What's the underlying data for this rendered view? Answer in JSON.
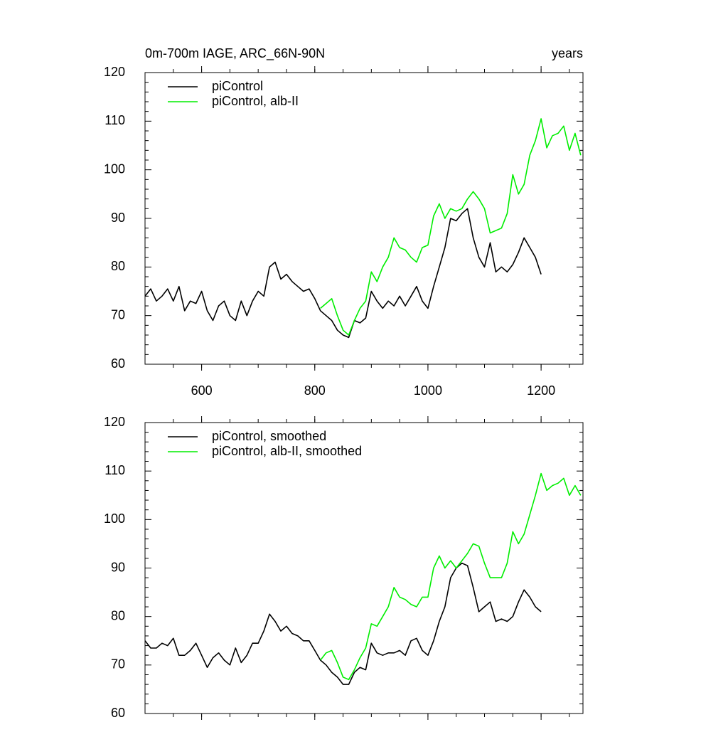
{
  "chart_data": [
    {
      "type": "line",
      "title": "0m-700m IAGE, ARC_66N-90N",
      "subtitle": "years",
      "xlim": [
        500,
        1274
      ],
      "xticks": [
        600,
        800,
        1000,
        1200
      ],
      "ylim": [
        60,
        120
      ],
      "yticks": [
        60,
        70,
        80,
        90,
        100,
        110,
        120
      ],
      "series": [
        {
          "name": "piControl",
          "color": "#000000",
          "x": [
            500,
            510,
            520,
            530,
            540,
            550,
            560,
            570,
            580,
            590,
            600,
            610,
            620,
            630,
            640,
            650,
            660,
            670,
            680,
            690,
            700,
            710,
            720,
            730,
            740,
            750,
            760,
            770,
            780,
            790,
            800,
            810,
            820,
            830,
            840,
            850,
            860,
            870,
            880,
            890,
            900,
            910,
            920,
            930,
            940,
            950,
            960,
            970,
            980,
            990,
            1000,
            1010,
            1020,
            1030,
            1040,
            1050,
            1060,
            1070,
            1080,
            1090,
            1100,
            1110,
            1120,
            1130,
            1140,
            1150,
            1160,
            1170,
            1180,
            1190,
            1200
          ],
          "values": [
            74,
            75.5,
            73,
            74,
            75.5,
            73,
            76,
            71,
            73,
            72.5,
            75,
            71,
            69,
            72,
            73,
            70,
            69,
            73,
            70,
            73,
            75,
            74,
            80,
            81,
            77.5,
            78.5,
            77,
            76,
            75,
            75.5,
            73.5,
            71,
            70,
            69,
            67,
            66,
            65.5,
            69,
            68.5,
            69.5,
            75,
            73,
            71.5,
            73,
            72,
            74,
            72,
            74,
            76,
            73,
            71.5,
            76,
            80,
            84,
            90,
            89.5,
            91,
            92,
            86,
            82,
            80,
            85,
            79,
            80,
            79,
            80.5,
            83,
            86,
            84,
            82,
            78.5
          ]
        },
        {
          "name": "piControl, alb-II",
          "color": "#00ee00",
          "x": [
            810,
            820,
            830,
            840,
            850,
            860,
            870,
            880,
            890,
            900,
            910,
            920,
            930,
            940,
            950,
            960,
            970,
            980,
            990,
            1000,
            1010,
            1020,
            1030,
            1040,
            1050,
            1060,
            1070,
            1080,
            1090,
            1100,
            1110,
            1120,
            1130,
            1140,
            1150,
            1160,
            1170,
            1180,
            1190,
            1200,
            1210,
            1220,
            1230,
            1240,
            1250,
            1260,
            1270
          ],
          "values": [
            71.5,
            72.5,
            73.5,
            70,
            67,
            66,
            69,
            71.5,
            73,
            79,
            77,
            80,
            82,
            86,
            84,
            83.5,
            82,
            81,
            84,
            84.5,
            90.5,
            93,
            90,
            92,
            91.5,
            92,
            94,
            95.5,
            94,
            92,
            87,
            87.5,
            88,
            91,
            99,
            95,
            97,
            103,
            106,
            110.5,
            104.5,
            107,
            107.5,
            109,
            104,
            107.5,
            103
          ]
        }
      ]
    },
    {
      "type": "line",
      "xlim": [
        500,
        1274
      ],
      "xticks": [
        600,
        800,
        1000,
        1200
      ],
      "ylim": [
        60,
        120
      ],
      "yticks": [
        60,
        70,
        80,
        90,
        100,
        110,
        120
      ],
      "series": [
        {
          "name": "piControl, smoothed",
          "color": "#000000",
          "x": [
            500,
            510,
            520,
            530,
            540,
            550,
            560,
            570,
            580,
            590,
            600,
            610,
            620,
            630,
            640,
            650,
            660,
            670,
            680,
            690,
            700,
            710,
            720,
            730,
            740,
            750,
            760,
            770,
            780,
            790,
            800,
            810,
            820,
            830,
            840,
            850,
            860,
            870,
            880,
            890,
            900,
            910,
            920,
            930,
            940,
            950,
            960,
            970,
            980,
            990,
            1000,
            1010,
            1020,
            1030,
            1040,
            1050,
            1060,
            1070,
            1080,
            1090,
            1100,
            1110,
            1120,
            1130,
            1140,
            1150,
            1160,
            1170,
            1180,
            1190,
            1200
          ],
          "values": [
            75,
            73.5,
            73.5,
            74.5,
            74,
            75.5,
            72,
            72,
            73,
            74.5,
            72,
            69.5,
            71.5,
            72.5,
            71,
            70,
            73.5,
            70.5,
            72,
            74.5,
            74.5,
            77,
            80.5,
            79,
            77,
            78,
            76.5,
            76,
            75,
            75,
            73,
            71,
            70,
            68.5,
            67.5,
            66,
            66,
            68.5,
            69.5,
            69,
            74.5,
            72.5,
            72,
            72.5,
            72.5,
            73,
            72,
            75,
            75.5,
            73,
            72,
            75,
            79,
            82,
            88,
            90,
            91,
            90.5,
            86,
            81,
            82,
            83,
            79,
            79.5,
            79,
            80,
            83,
            85.5,
            84,
            82,
            81
          ]
        },
        {
          "name": "piControl, alb-II, smoothed",
          "color": "#00ee00",
          "x": [
            810,
            820,
            830,
            840,
            850,
            860,
            870,
            880,
            890,
            900,
            910,
            920,
            930,
            940,
            950,
            960,
            970,
            980,
            990,
            1000,
            1010,
            1020,
            1030,
            1040,
            1050,
            1060,
            1070,
            1080,
            1090,
            1100,
            1110,
            1120,
            1130,
            1140,
            1150,
            1160,
            1170,
            1180,
            1190,
            1200,
            1210,
            1220,
            1230,
            1240,
            1250,
            1260,
            1270
          ],
          "values": [
            71,
            72.5,
            73,
            70.5,
            67.5,
            67,
            69,
            71.5,
            73.5,
            78.5,
            78,
            80,
            82,
            86,
            84,
            83.5,
            82.5,
            82,
            84,
            84,
            90,
            92.5,
            90,
            91.5,
            90,
            91.5,
            93,
            95,
            94.5,
            91,
            88,
            88,
            88,
            91,
            97.5,
            95,
            97,
            101,
            105,
            109.5,
            106,
            107,
            107.5,
            108.5,
            105,
            107,
            105
          ]
        }
      ]
    }
  ]
}
